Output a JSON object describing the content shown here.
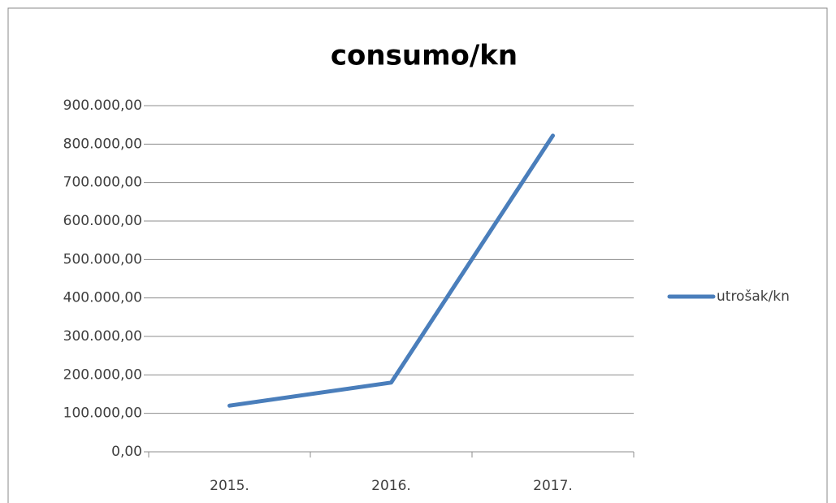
{
  "chart_data": {
    "type": "line",
    "title": "consumo/kn",
    "categories": [
      "2015.",
      "2016.",
      "2017."
    ],
    "series": [
      {
        "name": "utrošak/kn",
        "color": "#4a7ebb",
        "values": [
          120000,
          180000,
          822000
        ]
      }
    ],
    "ylim": [
      0,
      900000
    ],
    "yticks": [
      {
        "value": 0,
        "label": "0,00"
      },
      {
        "value": 100000,
        "label": "100.000,00"
      },
      {
        "value": 200000,
        "label": "200.000,00"
      },
      {
        "value": 300000,
        "label": "300.000,00"
      },
      {
        "value": 400000,
        "label": "400.000,00"
      },
      {
        "value": 500000,
        "label": "500.000,00"
      },
      {
        "value": 600000,
        "label": "600.000,00"
      },
      {
        "value": 700000,
        "label": "700.000,00"
      },
      {
        "value": 800000,
        "label": "800.000,00"
      },
      {
        "value": 900000,
        "label": "900.000,00"
      }
    ],
    "grid": true,
    "legend": "right"
  }
}
